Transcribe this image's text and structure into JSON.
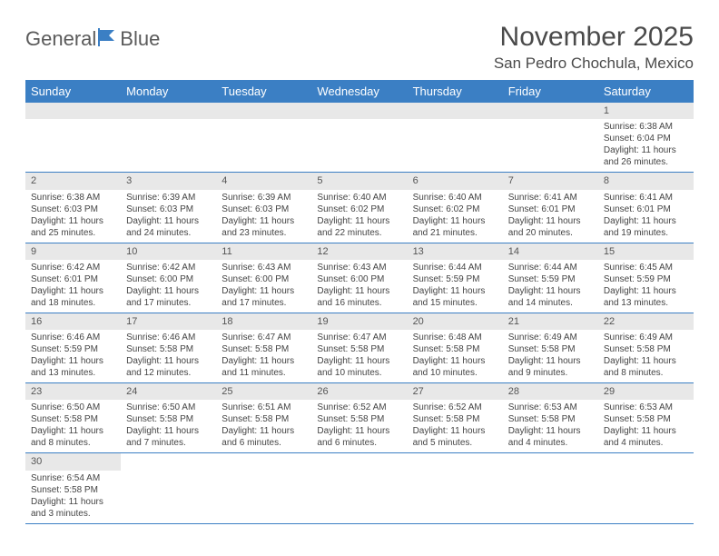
{
  "logo": {
    "text1": "General",
    "text2": "Blue"
  },
  "title": "November 2025",
  "location": "San Pedro Chochula, Mexico",
  "colors": {
    "header_bg": "#3b7fc4",
    "header_text": "#ffffff",
    "daynum_bg": "#e8e8e8",
    "border": "#3b7fc4",
    "text": "#444444"
  },
  "day_headers": [
    "Sunday",
    "Monday",
    "Tuesday",
    "Wednesday",
    "Thursday",
    "Friday",
    "Saturday"
  ],
  "weeks": [
    [
      null,
      null,
      null,
      null,
      null,
      null,
      {
        "n": "1",
        "sunrise": "6:38 AM",
        "sunset": "6:04 PM",
        "dl": "11 hours and 26 minutes."
      }
    ],
    [
      {
        "n": "2",
        "sunrise": "6:38 AM",
        "sunset": "6:03 PM",
        "dl": "11 hours and 25 minutes."
      },
      {
        "n": "3",
        "sunrise": "6:39 AM",
        "sunset": "6:03 PM",
        "dl": "11 hours and 24 minutes."
      },
      {
        "n": "4",
        "sunrise": "6:39 AM",
        "sunset": "6:03 PM",
        "dl": "11 hours and 23 minutes."
      },
      {
        "n": "5",
        "sunrise": "6:40 AM",
        "sunset": "6:02 PM",
        "dl": "11 hours and 22 minutes."
      },
      {
        "n": "6",
        "sunrise": "6:40 AM",
        "sunset": "6:02 PM",
        "dl": "11 hours and 21 minutes."
      },
      {
        "n": "7",
        "sunrise": "6:41 AM",
        "sunset": "6:01 PM",
        "dl": "11 hours and 20 minutes."
      },
      {
        "n": "8",
        "sunrise": "6:41 AM",
        "sunset": "6:01 PM",
        "dl": "11 hours and 19 minutes."
      }
    ],
    [
      {
        "n": "9",
        "sunrise": "6:42 AM",
        "sunset": "6:01 PM",
        "dl": "11 hours and 18 minutes."
      },
      {
        "n": "10",
        "sunrise": "6:42 AM",
        "sunset": "6:00 PM",
        "dl": "11 hours and 17 minutes."
      },
      {
        "n": "11",
        "sunrise": "6:43 AM",
        "sunset": "6:00 PM",
        "dl": "11 hours and 17 minutes."
      },
      {
        "n": "12",
        "sunrise": "6:43 AM",
        "sunset": "6:00 PM",
        "dl": "11 hours and 16 minutes."
      },
      {
        "n": "13",
        "sunrise": "6:44 AM",
        "sunset": "5:59 PM",
        "dl": "11 hours and 15 minutes."
      },
      {
        "n": "14",
        "sunrise": "6:44 AM",
        "sunset": "5:59 PM",
        "dl": "11 hours and 14 minutes."
      },
      {
        "n": "15",
        "sunrise": "6:45 AM",
        "sunset": "5:59 PM",
        "dl": "11 hours and 13 minutes."
      }
    ],
    [
      {
        "n": "16",
        "sunrise": "6:46 AM",
        "sunset": "5:59 PM",
        "dl": "11 hours and 13 minutes."
      },
      {
        "n": "17",
        "sunrise": "6:46 AM",
        "sunset": "5:58 PM",
        "dl": "11 hours and 12 minutes."
      },
      {
        "n": "18",
        "sunrise": "6:47 AM",
        "sunset": "5:58 PM",
        "dl": "11 hours and 11 minutes."
      },
      {
        "n": "19",
        "sunrise": "6:47 AM",
        "sunset": "5:58 PM",
        "dl": "11 hours and 10 minutes."
      },
      {
        "n": "20",
        "sunrise": "6:48 AM",
        "sunset": "5:58 PM",
        "dl": "11 hours and 10 minutes."
      },
      {
        "n": "21",
        "sunrise": "6:49 AM",
        "sunset": "5:58 PM",
        "dl": "11 hours and 9 minutes."
      },
      {
        "n": "22",
        "sunrise": "6:49 AM",
        "sunset": "5:58 PM",
        "dl": "11 hours and 8 minutes."
      }
    ],
    [
      {
        "n": "23",
        "sunrise": "6:50 AM",
        "sunset": "5:58 PM",
        "dl": "11 hours and 8 minutes."
      },
      {
        "n": "24",
        "sunrise": "6:50 AM",
        "sunset": "5:58 PM",
        "dl": "11 hours and 7 minutes."
      },
      {
        "n": "25",
        "sunrise": "6:51 AM",
        "sunset": "5:58 PM",
        "dl": "11 hours and 6 minutes."
      },
      {
        "n": "26",
        "sunrise": "6:52 AM",
        "sunset": "5:58 PM",
        "dl": "11 hours and 6 minutes."
      },
      {
        "n": "27",
        "sunrise": "6:52 AM",
        "sunset": "5:58 PM",
        "dl": "11 hours and 5 minutes."
      },
      {
        "n": "28",
        "sunrise": "6:53 AM",
        "sunset": "5:58 PM",
        "dl": "11 hours and 4 minutes."
      },
      {
        "n": "29",
        "sunrise": "6:53 AM",
        "sunset": "5:58 PM",
        "dl": "11 hours and 4 minutes."
      }
    ],
    [
      {
        "n": "30",
        "sunrise": "6:54 AM",
        "sunset": "5:58 PM",
        "dl": "11 hours and 3 minutes."
      },
      null,
      null,
      null,
      null,
      null,
      null
    ]
  ],
  "labels": {
    "sunrise": "Sunrise:",
    "sunset": "Sunset:",
    "daylight": "Daylight:"
  }
}
